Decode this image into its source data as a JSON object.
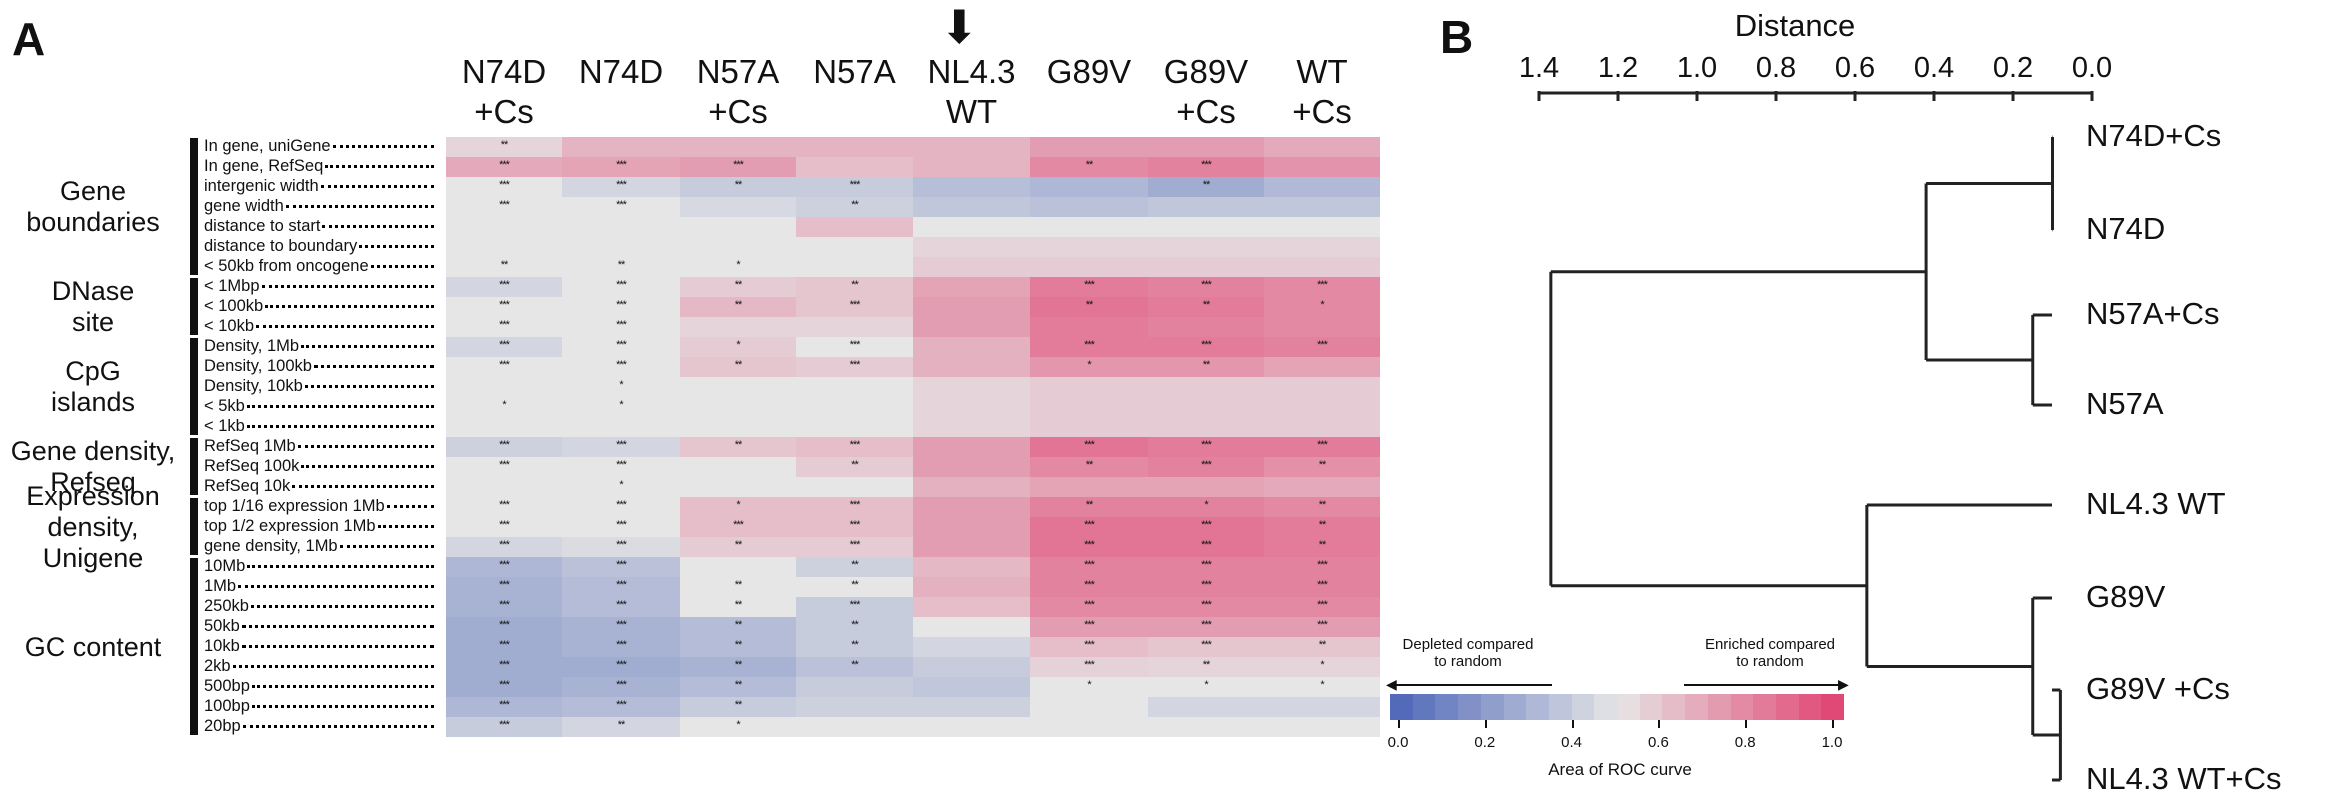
{
  "panel_a": {
    "letter": "A",
    "arrow_glyph": "⬇",
    "columns": [
      "N74D\n+Cs",
      "N74D",
      "N57A\n+Cs",
      "N57A",
      "NL4.3\nWT",
      "G89V",
      "G89V\n+Cs",
      "WT\n+Cs"
    ],
    "groups": [
      {
        "label": "Gene\nboundaries",
        "rows": [
          "In gene, uniGene",
          "In gene, RefSeq",
          "intergenic width",
          "gene width",
          "distance to start",
          "distance to boundary",
          "< 50kb from oncogene"
        ]
      },
      {
        "label": "DNase\nsite",
        "rows": [
          "< 1Mbp",
          "< 100kb",
          "< 10kb"
        ]
      },
      {
        "label": "CpG\nislands",
        "rows": [
          "Density, 1Mb",
          "Density, 100kb",
          "Density, 10kb",
          "< 5kb",
          "< 1kb"
        ]
      },
      {
        "label": "Gene density,\nRefseq",
        "rows": [
          "RefSeq 1Mb",
          "RefSeq 100k",
          "RefSeq 10k"
        ]
      },
      {
        "label": "Expression\ndensity,\nUnigene",
        "rows": [
          "top 1/16 expression 1Mb",
          "top 1/2 expression 1Mb",
          "gene density, 1Mb"
        ]
      },
      {
        "label": "GC content",
        "rows": [
          "10Mb",
          "1Mb",
          "250kb",
          "50kb",
          "10kb",
          "2kb",
          "500bp",
          "100bp",
          "20bp"
        ]
      }
    ],
    "heatmap_values": [
      [
        0.55,
        0.65,
        0.65,
        0.65,
        0.65,
        0.72,
        0.72,
        0.68
      ],
      [
        0.68,
        0.7,
        0.72,
        0.62,
        0.65,
        0.78,
        0.8,
        0.75
      ],
      [
        0.5,
        0.44,
        0.4,
        0.4,
        0.35,
        0.32,
        0.28,
        0.33
      ],
      [
        0.5,
        0.5,
        0.45,
        0.42,
        0.38,
        0.36,
        0.38,
        0.38
      ],
      [
        0.5,
        0.5,
        0.5,
        0.62,
        0.5,
        0.5,
        0.5,
        0.5
      ],
      [
        0.5,
        0.5,
        0.5,
        0.5,
        0.55,
        0.55,
        0.55,
        0.55
      ],
      [
        0.5,
        0.5,
        0.5,
        0.5,
        0.58,
        0.58,
        0.58,
        0.58
      ],
      [
        0.44,
        0.5,
        0.58,
        0.6,
        0.7,
        0.82,
        0.8,
        0.78
      ],
      [
        0.5,
        0.5,
        0.64,
        0.6,
        0.72,
        0.84,
        0.82,
        0.78
      ],
      [
        0.5,
        0.5,
        0.55,
        0.55,
        0.72,
        0.82,
        0.8,
        0.78
      ],
      [
        0.44,
        0.5,
        0.58,
        0.5,
        0.66,
        0.82,
        0.82,
        0.8
      ],
      [
        0.5,
        0.5,
        0.6,
        0.58,
        0.66,
        0.74,
        0.74,
        0.7
      ],
      [
        0.5,
        0.5,
        0.5,
        0.5,
        0.55,
        0.58,
        0.58,
        0.58
      ],
      [
        0.5,
        0.5,
        0.5,
        0.5,
        0.55,
        0.58,
        0.58,
        0.58
      ],
      [
        0.5,
        0.5,
        0.5,
        0.5,
        0.55,
        0.58,
        0.58,
        0.58
      ],
      [
        0.42,
        0.44,
        0.6,
        0.62,
        0.72,
        0.84,
        0.82,
        0.82
      ],
      [
        0.5,
        0.5,
        0.5,
        0.58,
        0.72,
        0.78,
        0.8,
        0.76
      ],
      [
        0.5,
        0.5,
        0.5,
        0.5,
        0.66,
        0.7,
        0.7,
        0.68
      ],
      [
        0.5,
        0.5,
        0.62,
        0.62,
        0.72,
        0.8,
        0.8,
        0.78
      ],
      [
        0.5,
        0.5,
        0.62,
        0.62,
        0.72,
        0.84,
        0.84,
        0.82
      ],
      [
        0.44,
        0.46,
        0.58,
        0.58,
        0.72,
        0.84,
        0.84,
        0.82
      ],
      [
        0.32,
        0.36,
        0.5,
        0.42,
        0.64,
        0.8,
        0.8,
        0.8
      ],
      [
        0.3,
        0.34,
        0.5,
        0.5,
        0.66,
        0.8,
        0.8,
        0.8
      ],
      [
        0.3,
        0.34,
        0.5,
        0.4,
        0.62,
        0.78,
        0.78,
        0.78
      ],
      [
        0.28,
        0.3,
        0.34,
        0.4,
        0.5,
        0.72,
        0.72,
        0.72
      ],
      [
        0.28,
        0.3,
        0.34,
        0.4,
        0.44,
        0.62,
        0.6,
        0.6
      ],
      [
        0.28,
        0.28,
        0.3,
        0.36,
        0.4,
        0.56,
        0.55,
        0.55
      ],
      [
        0.28,
        0.3,
        0.34,
        0.4,
        0.38,
        0.5,
        0.5,
        0.5
      ],
      [
        0.32,
        0.34,
        0.4,
        0.42,
        0.42,
        0.5,
        0.44,
        0.44
      ],
      [
        0.4,
        0.44,
        0.5,
        0.5,
        0.5,
        0.5,
        0.5,
        0.5
      ]
    ],
    "stars": [
      [
        "**",
        "",
        "",
        "",
        "",
        "",
        "",
        ""
      ],
      [
        "***",
        "***",
        "***",
        "",
        "",
        "**",
        "***",
        ""
      ],
      [
        "***",
        "***",
        "**",
        "***",
        "",
        "",
        "**",
        ""
      ],
      [
        "***",
        "***",
        "",
        "**",
        "",
        "",
        "",
        ""
      ],
      [
        "",
        "",
        "",
        "",
        "",
        "",
        "",
        ""
      ],
      [
        "",
        "",
        "",
        "",
        "",
        "",
        "",
        ""
      ],
      [
        "**",
        "**",
        "*",
        "",
        "",
        "",
        "",
        ""
      ],
      [
        "***",
        "***",
        "**",
        "**",
        "",
        "***",
        "***",
        "***"
      ],
      [
        "***",
        "***",
        "**",
        "***",
        "",
        "**",
        "**",
        "*"
      ],
      [
        "***",
        "***",
        "",
        "",
        "",
        "",
        "",
        ""
      ],
      [
        "***",
        "***",
        "*",
        "***",
        "",
        "***",
        "***",
        "***"
      ],
      [
        "***",
        "***",
        "**",
        "***",
        "",
        "*",
        "**",
        ""
      ],
      [
        "",
        "*",
        "",
        "",
        "",
        "",
        "",
        ""
      ],
      [
        "*",
        "*",
        "",
        "",
        "",
        "",
        "",
        ""
      ],
      [
        "",
        "",
        "",
        "",
        "",
        "",
        "",
        ""
      ],
      [
        "***",
        "***",
        "**",
        "***",
        "",
        "***",
        "***",
        "***"
      ],
      [
        "***",
        "***",
        "",
        "**",
        "",
        "**",
        "***",
        "**"
      ],
      [
        "",
        "*",
        "",
        "",
        "",
        "",
        "",
        ""
      ],
      [
        "***",
        "***",
        "*",
        "***",
        "",
        "**",
        "*",
        "**"
      ],
      [
        "***",
        "***",
        "***",
        "***",
        "",
        "***",
        "***",
        "**"
      ],
      [
        "***",
        "***",
        "**",
        "***",
        "",
        "***",
        "***",
        "**"
      ],
      [
        "***",
        "***",
        "",
        "**",
        "",
        "***",
        "***",
        "***"
      ],
      [
        "***",
        "***",
        "**",
        "**",
        "",
        "***",
        "***",
        "***"
      ],
      [
        "***",
        "***",
        "**",
        "***",
        "",
        "***",
        "***",
        "***"
      ],
      [
        "***",
        "***",
        "**",
        "**",
        "",
        "***",
        "***",
        "***"
      ],
      [
        "***",
        "***",
        "**",
        "**",
        "",
        "***",
        "***",
        "**"
      ],
      [
        "***",
        "***",
        "**",
        "**",
        "",
        "***",
        "**",
        "*"
      ],
      [
        "***",
        "***",
        "**",
        "",
        "",
        "*",
        "*",
        "*"
      ],
      [
        "***",
        "***",
        "**",
        "",
        "",
        "",
        "",
        ""
      ],
      [
        "***",
        "**",
        "*",
        "",
        "",
        "",
        "",
        ""
      ]
    ],
    "colorbar": {
      "left_note": "Depleted compared\nto random",
      "right_note": "Enriched compared\nto random",
      "ticks": [
        "0.0",
        "0.2",
        "0.4",
        "0.6",
        "0.8",
        "1.0"
      ],
      "label": "Area of ROC curve",
      "low_color": "#4a63b7",
      "mid_color": "#e6e6e6",
      "high_color": "#e0406f"
    }
  },
  "panel_b": {
    "letter": "B",
    "axis_title": "Distance",
    "ticks": [
      "1.4",
      "1.2",
      "1.0",
      "0.8",
      "0.6",
      "0.4",
      "0.2",
      "0.0"
    ],
    "leaves": [
      "N74D+Cs",
      "N74D",
      "N57A+Cs",
      "N57A",
      "NL4.3 WT",
      "G89V",
      "G89V +Cs",
      "NL4.3 WT+Cs"
    ],
    "merges": [
      {
        "a": "N74D+Cs",
        "b": "N74D",
        "height": 0.1
      },
      {
        "a": "N57A+Cs",
        "b": "N57A",
        "height": 0.15
      },
      {
        "a": "cluster-N74D",
        "b": "cluster-N57A",
        "height": 0.42
      },
      {
        "a": "G89V +Cs",
        "b": "NL4.3 WT+Cs",
        "height": 0.08
      },
      {
        "a": "G89V",
        "b": "cluster-G89V+Cs",
        "height": 0.15
      },
      {
        "a": "NL4.3 WT",
        "b": "cluster-G89V",
        "height": 0.57
      },
      {
        "a": "cluster-top",
        "b": "cluster-bottom",
        "height": 1.37
      }
    ]
  }
}
